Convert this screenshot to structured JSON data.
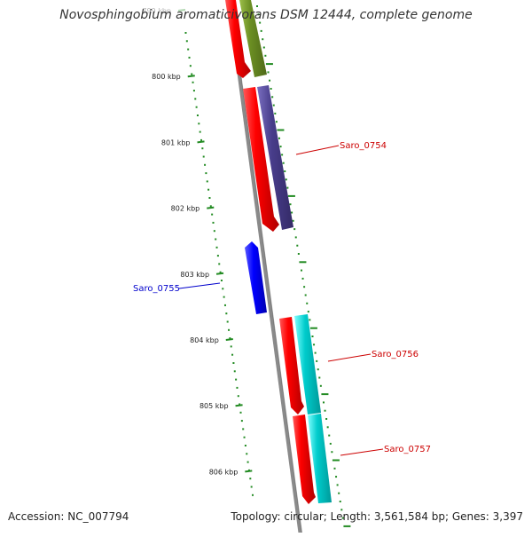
{
  "title": "Novosphingobium aromaticivorans DSM 12444, complete genome",
  "footer": {
    "accession": "Accession: NC_007794",
    "summary": "Topology: circular; Length: 3,561,584 bp; Genes: 3,397"
  },
  "ticks": [
    {
      "label": "799 kbp",
      "faded": true
    },
    {
      "label": "800 kbp"
    },
    {
      "label": "801 kbp"
    },
    {
      "label": "802 kbp"
    },
    {
      "label": "803 kbp"
    },
    {
      "label": "804 kbp"
    },
    {
      "label": "805 kbp"
    },
    {
      "label": "806 kbp"
    }
  ],
  "genes": [
    {
      "name": "Saro_0754",
      "color": "#cc0000",
      "strand": "forward"
    },
    {
      "name": "Saro_0755",
      "color": "#0000cc",
      "strand": "reverse"
    },
    {
      "name": "Saro_0756",
      "color": "#cc0000",
      "strand": "forward"
    },
    {
      "name": "Saro_0757",
      "color": "#cc0000",
      "strand": "forward"
    }
  ],
  "colors": {
    "cds": "#ff0000",
    "forward_gene": "#ff0000",
    "reverse_gene": "#0000ff",
    "track_olive": "#6b8e23",
    "track_purple": "#483d8b",
    "track_cyan": "#00cccc",
    "backbone": "#888888",
    "ticks": "#228b22"
  }
}
